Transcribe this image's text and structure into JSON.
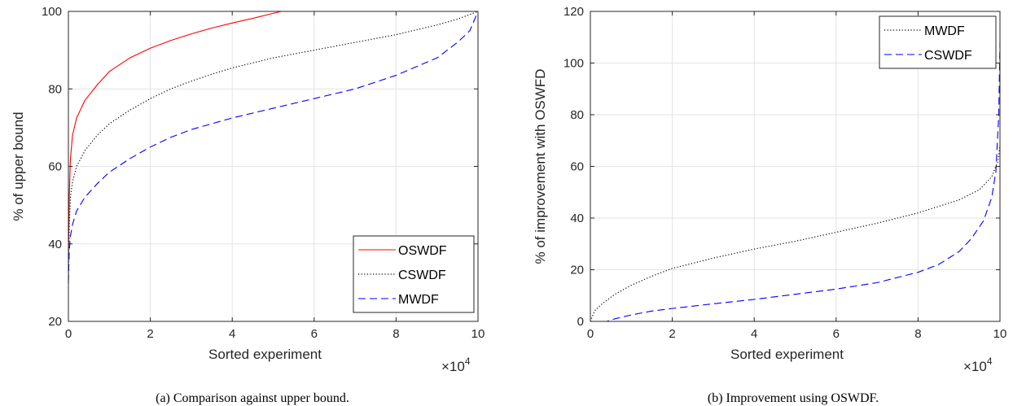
{
  "chart_data": [
    {
      "type": "line",
      "caption": "(a) Comparison against upper bound.",
      "xlabel": "Sorted experiment",
      "ylabel": "% of upper bound",
      "x_multiplier": "×10^4",
      "xlim": [
        0,
        10
      ],
      "ylim": [
        20,
        100
      ],
      "xticks": [
        0,
        2,
        4,
        6,
        8,
        10
      ],
      "yticks": [
        20,
        40,
        60,
        80,
        100
      ],
      "grid": true,
      "legend_placement": "bottom-right",
      "series": [
        {
          "name": "OSWDF",
          "color": "#ff0000",
          "style": "solid",
          "points": [
            [
              0,
              35
            ],
            [
              0.02,
              52
            ],
            [
              0.05,
              62
            ],
            [
              0.1,
              68
            ],
            [
              0.2,
              72.5
            ],
            [
              0.4,
              77
            ],
            [
              0.7,
              81
            ],
            [
              1,
              84.5
            ],
            [
              1.5,
              88
            ],
            [
              2,
              90.5
            ],
            [
              2.5,
              92.5
            ],
            [
              3,
              94.2
            ],
            [
              3.5,
              95.7
            ],
            [
              4,
              97
            ],
            [
              4.5,
              98.2
            ],
            [
              5,
              99.5
            ],
            [
              5.2,
              100
            ],
            [
              10,
              100
            ]
          ]
        },
        {
          "name": "CSWDF",
          "color": "#000000",
          "style": "dotted",
          "points": [
            [
              0,
              30
            ],
            [
              0.02,
              45
            ],
            [
              0.05,
              52
            ],
            [
              0.1,
              56
            ],
            [
              0.2,
              60
            ],
            [
              0.4,
              64
            ],
            [
              0.7,
              68
            ],
            [
              1,
              71
            ],
            [
              1.5,
              74.5
            ],
            [
              2,
              77.5
            ],
            [
              2.5,
              80
            ],
            [
              3,
              82
            ],
            [
              3.5,
              83.8
            ],
            [
              4,
              85.4
            ],
            [
              5,
              88
            ],
            [
              6,
              90
            ],
            [
              7,
              92
            ],
            [
              8,
              94
            ],
            [
              9,
              96.5
            ],
            [
              9.5,
              98
            ],
            [
              10,
              100
            ]
          ]
        },
        {
          "name": "MWDF",
          "color": "#0000ff",
          "style": "dashed",
          "points": [
            [
              0,
              30
            ],
            [
              0.02,
              38
            ],
            [
              0.05,
              42
            ],
            [
              0.1,
              45
            ],
            [
              0.2,
              48.5
            ],
            [
              0.4,
              52
            ],
            [
              0.7,
              55.5
            ],
            [
              1,
              58.5
            ],
            [
              1.5,
              62
            ],
            [
              2,
              65
            ],
            [
              2.5,
              67.5
            ],
            [
              3,
              69.5
            ],
            [
              3.5,
              71
            ],
            [
              4,
              72.5
            ],
            [
              5,
              75
            ],
            [
              6,
              77.5
            ],
            [
              7,
              80
            ],
            [
              8,
              83.5
            ],
            [
              9,
              88
            ],
            [
              9.5,
              92
            ],
            [
              9.8,
              95
            ],
            [
              10,
              100
            ]
          ]
        }
      ]
    },
    {
      "type": "line",
      "caption": "(b) Improvement using OSWDF.",
      "xlabel": "Sorted experiment",
      "ylabel": "% of improvement with OSWFD",
      "x_multiplier": "×10^4",
      "xlim": [
        0,
        10
      ],
      "ylim": [
        0,
        120
      ],
      "xticks": [
        0,
        2,
        4,
        6,
        8,
        10
      ],
      "yticks": [
        0,
        20,
        40,
        60,
        80,
        100,
        120
      ],
      "grid": true,
      "legend_placement": "top-right",
      "series": [
        {
          "name": "MWDF",
          "color": "#000000",
          "style": "dotted",
          "points": [
            [
              0,
              0
            ],
            [
              0.1,
              4
            ],
            [
              0.3,
              7
            ],
            [
              0.6,
              10.5
            ],
            [
              1,
              14
            ],
            [
              1.5,
              17.5
            ],
            [
              2,
              20.5
            ],
            [
              3,
              24.5
            ],
            [
              4,
              28
            ],
            [
              5,
              31
            ],
            [
              6,
              34.5
            ],
            [
              7,
              38
            ],
            [
              8,
              42
            ],
            [
              9,
              47
            ],
            [
              9.5,
              51
            ],
            [
              9.8,
              56
            ],
            [
              9.95,
              62
            ],
            [
              10,
              68
            ]
          ]
        },
        {
          "name": "CSWDF",
          "color": "#0000ff",
          "style": "dashed",
          "points": [
            [
              0,
              0
            ],
            [
              0.4,
              0
            ],
            [
              0.6,
              1
            ],
            [
              1,
              2.5
            ],
            [
              1.5,
              4
            ],
            [
              2,
              5
            ],
            [
              3,
              6.8
            ],
            [
              4,
              8.5
            ],
            [
              5,
              10.5
            ],
            [
              6,
              12.5
            ],
            [
              7,
              15
            ],
            [
              8,
              19
            ],
            [
              8.5,
              22
            ],
            [
              9,
              27
            ],
            [
              9.3,
              32
            ],
            [
              9.6,
              39
            ],
            [
              9.8,
              48
            ],
            [
              9.9,
              58
            ],
            [
              9.97,
              80
            ],
            [
              10,
              108
            ]
          ]
        }
      ]
    }
  ]
}
